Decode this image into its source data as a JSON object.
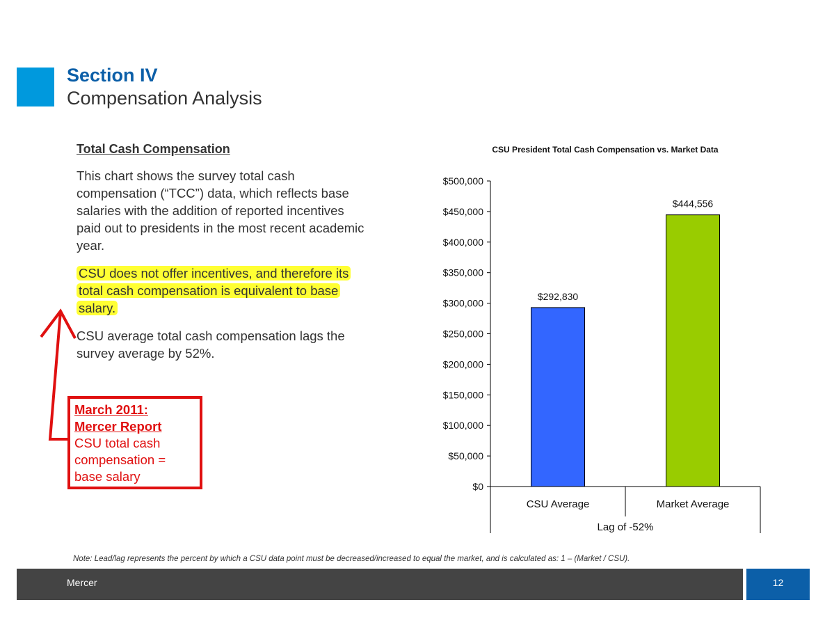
{
  "header": {
    "section": "Section IV",
    "subtitle": "Compensation Analysis"
  },
  "left": {
    "heading": "Total Cash Compensation",
    "para1": "This chart shows the survey total cash compensation (“TCC”) data, which reflects base salaries with the addition of reported incentives paid out to presidents in the most recent academic year.",
    "para2": "CSU does not offer incentives, and therefore its total cash compensation is equivalent to base salary.",
    "para3": "CSU average total cash compensation lags the survey average by 52%."
  },
  "annotation": {
    "line1": "March 2011:",
    "line2": "Mercer Report",
    "line3": "CSU total cash compensation = base salary"
  },
  "chart_data": {
    "type": "bar",
    "title": "CSU President Total Cash Compensation vs. Market Data",
    "categories": [
      "CSU Average",
      "Market Average"
    ],
    "values": [
      292830,
      444556
    ],
    "value_labels": [
      "$292,830",
      "$444,556"
    ],
    "colors": [
      "#3366ff",
      "#99cc00"
    ],
    "ylim": [
      0,
      500000
    ],
    "yticks": [
      0,
      50000,
      100000,
      150000,
      200000,
      250000,
      300000,
      350000,
      400000,
      450000,
      500000
    ],
    "ytick_labels": [
      "$0",
      "$50,000",
      "$100,000",
      "$150,000",
      "$200,000",
      "$250,000",
      "$300,000",
      "$350,000",
      "$400,000",
      "$450,000",
      "$500,000"
    ],
    "group_label": "Lag of -52%",
    "grid": false,
    "legend": "none"
  },
  "note": "Note: Lead/lag represents the percent by which a CSU data point must be decreased/increased to equal the market, and is calculated as: 1 – (Market / CSU).",
  "footer": {
    "brand": "Mercer",
    "page": "12"
  },
  "colors": {
    "accent_blue": "#0099dd",
    "title_blue": "#0c5fa8",
    "highlight": "#ffff33",
    "annotation_red": "#e01010",
    "footer_gray": "#444444"
  }
}
